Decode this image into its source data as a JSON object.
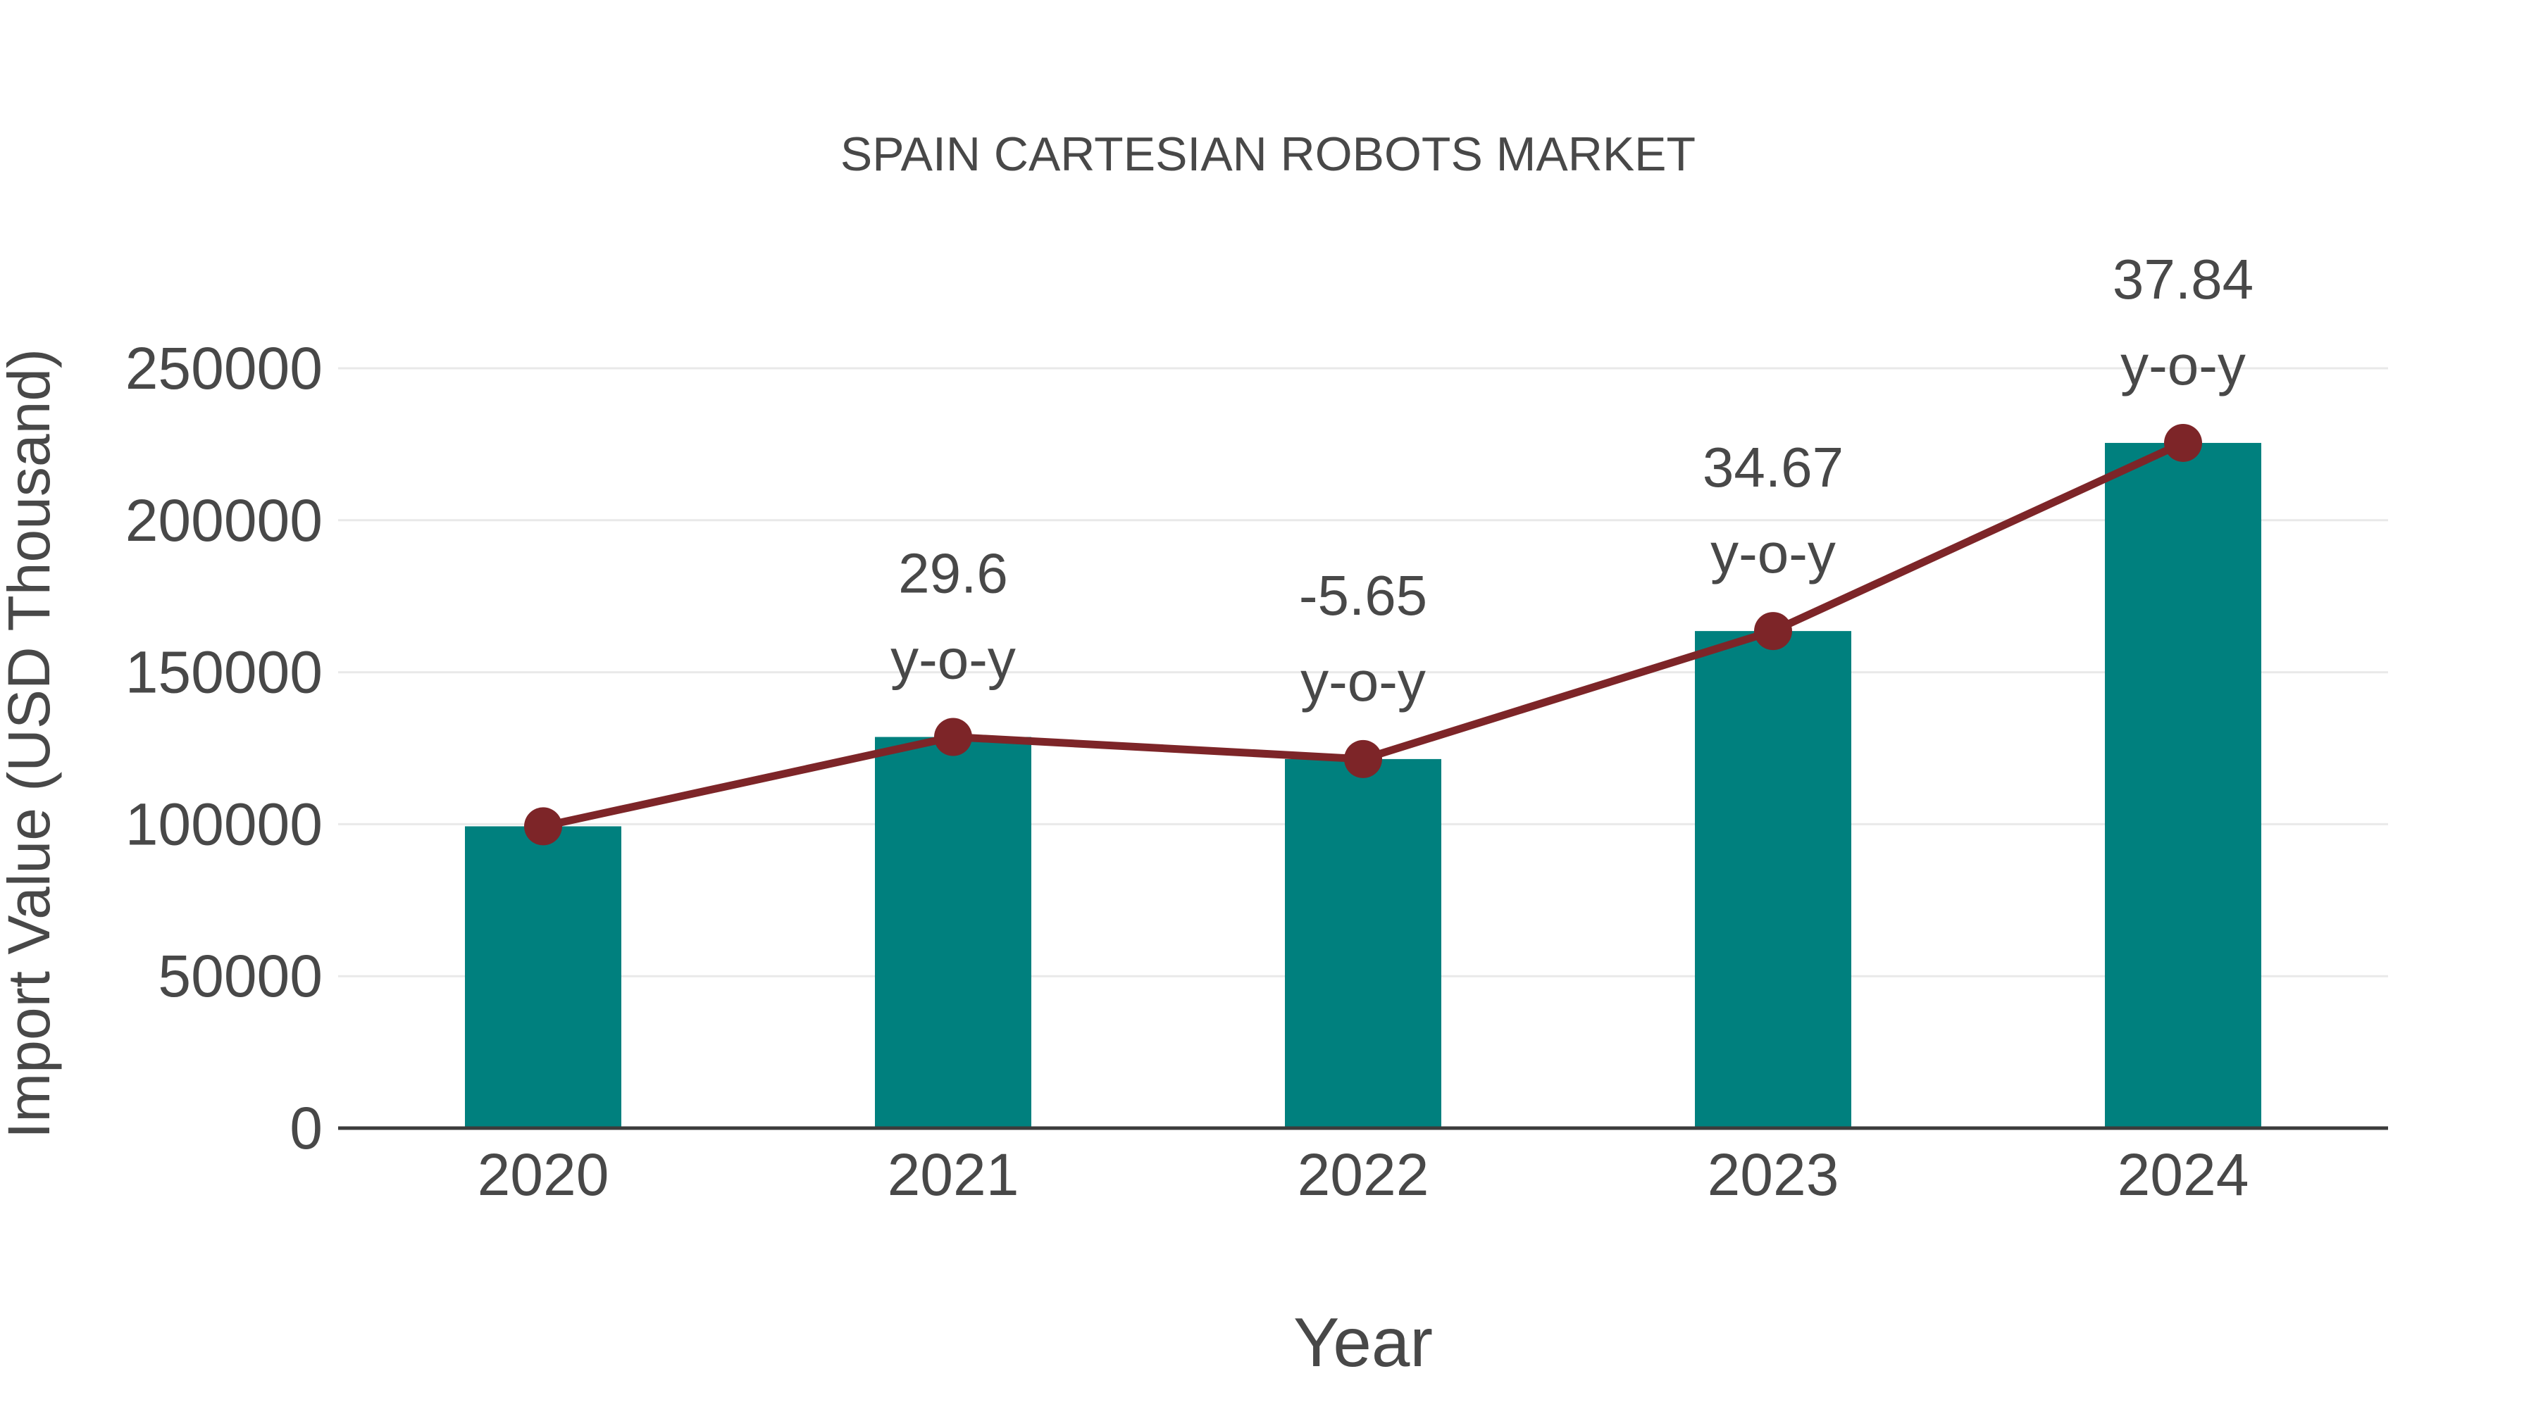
{
  "title": "SPAIN CARTESIAN ROBOTS MARKET",
  "colors": {
    "background": "#ffffff",
    "bar": "#00807e",
    "line": "#7d2528",
    "marker": "#7d2528",
    "text": "#484848",
    "grid": "#e9e9e9",
    "axis": "#3c3c3c"
  },
  "chart_data": {
    "type": "bar",
    "subtype": "bar-with-line-overlay",
    "title": "SPAIN CARTESIAN ROBOTS MARKET",
    "xlabel": "Year",
    "ylabel": "Import Value (USD Thousand)",
    "categories": [
      "2020",
      "2021",
      "2022",
      "2023",
      "2024"
    ],
    "series": [
      {
        "name": "Import Value (USD Thousand)",
        "type": "bar",
        "color": "#00807e",
        "values": [
          99300,
          128700,
          121430,
          163550,
          225450
        ]
      },
      {
        "name": "y-o-y",
        "type": "line",
        "color": "#7d2528",
        "values": [
          99300,
          128700,
          121430,
          163550,
          225450
        ],
        "yoy_percent": [
          null,
          29.6,
          -5.65,
          34.67,
          37.84
        ]
      }
    ],
    "annotations": [
      {
        "category": "2021",
        "lines": [
          "29.6",
          "y-o-y"
        ]
      },
      {
        "category": "2022",
        "lines": [
          "-5.65",
          "y-o-y"
        ]
      },
      {
        "category": "2023",
        "lines": [
          "34.67",
          "y-o-y"
        ]
      },
      {
        "category": "2024",
        "lines": [
          "37.84",
          "y-o-y"
        ]
      }
    ],
    "yticks": [
      0,
      50000,
      100000,
      150000,
      200000,
      250000
    ],
    "ylim": [
      0,
      250000
    ],
    "grid": "horizontal",
    "legend": "none"
  }
}
